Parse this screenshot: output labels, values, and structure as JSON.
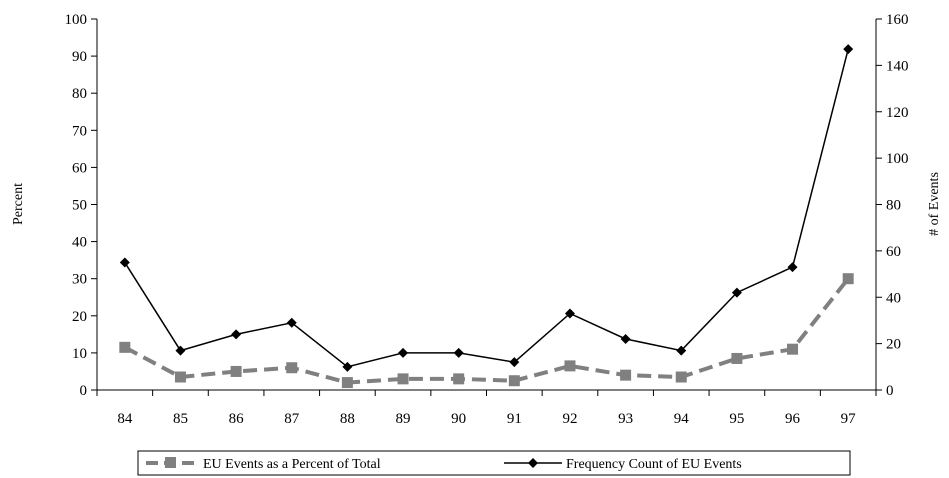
{
  "chart_data": {
    "type": "line",
    "title": "",
    "categories": [
      "84",
      "85",
      "86",
      "87",
      "88",
      "89",
      "90",
      "91",
      "92",
      "93",
      "94",
      "95",
      "96",
      "97"
    ],
    "y_left": {
      "label": "Percent",
      "range": [
        0,
        100
      ],
      "ticks": [
        "0",
        "10",
        "20",
        "30",
        "40",
        "50",
        "60",
        "70",
        "80",
        "90",
        "100"
      ]
    },
    "y_right": {
      "label": "# of Events",
      "range": [
        0,
        160
      ],
      "ticks": [
        "0",
        "20",
        "40",
        "60",
        "80",
        "100",
        "120",
        "140",
        "160"
      ]
    },
    "series": [
      {
        "name": "EU Events as a Percent of Total",
        "axis": "left",
        "style": "dashed-square",
        "color": "#808080",
        "values": [
          11.5,
          3.5,
          5,
          6,
          2,
          3,
          3,
          2.5,
          6.5,
          4,
          3.5,
          8.5,
          11,
          30
        ]
      },
      {
        "name": "Frequency Count of EU Events",
        "axis": "right",
        "style": "solid-diamond",
        "color": "#000000",
        "values": [
          55,
          17,
          24,
          29,
          10,
          16,
          16,
          12,
          33,
          22,
          17,
          42,
          53,
          147
        ]
      }
    ],
    "grid": false,
    "legend": "bottom"
  }
}
